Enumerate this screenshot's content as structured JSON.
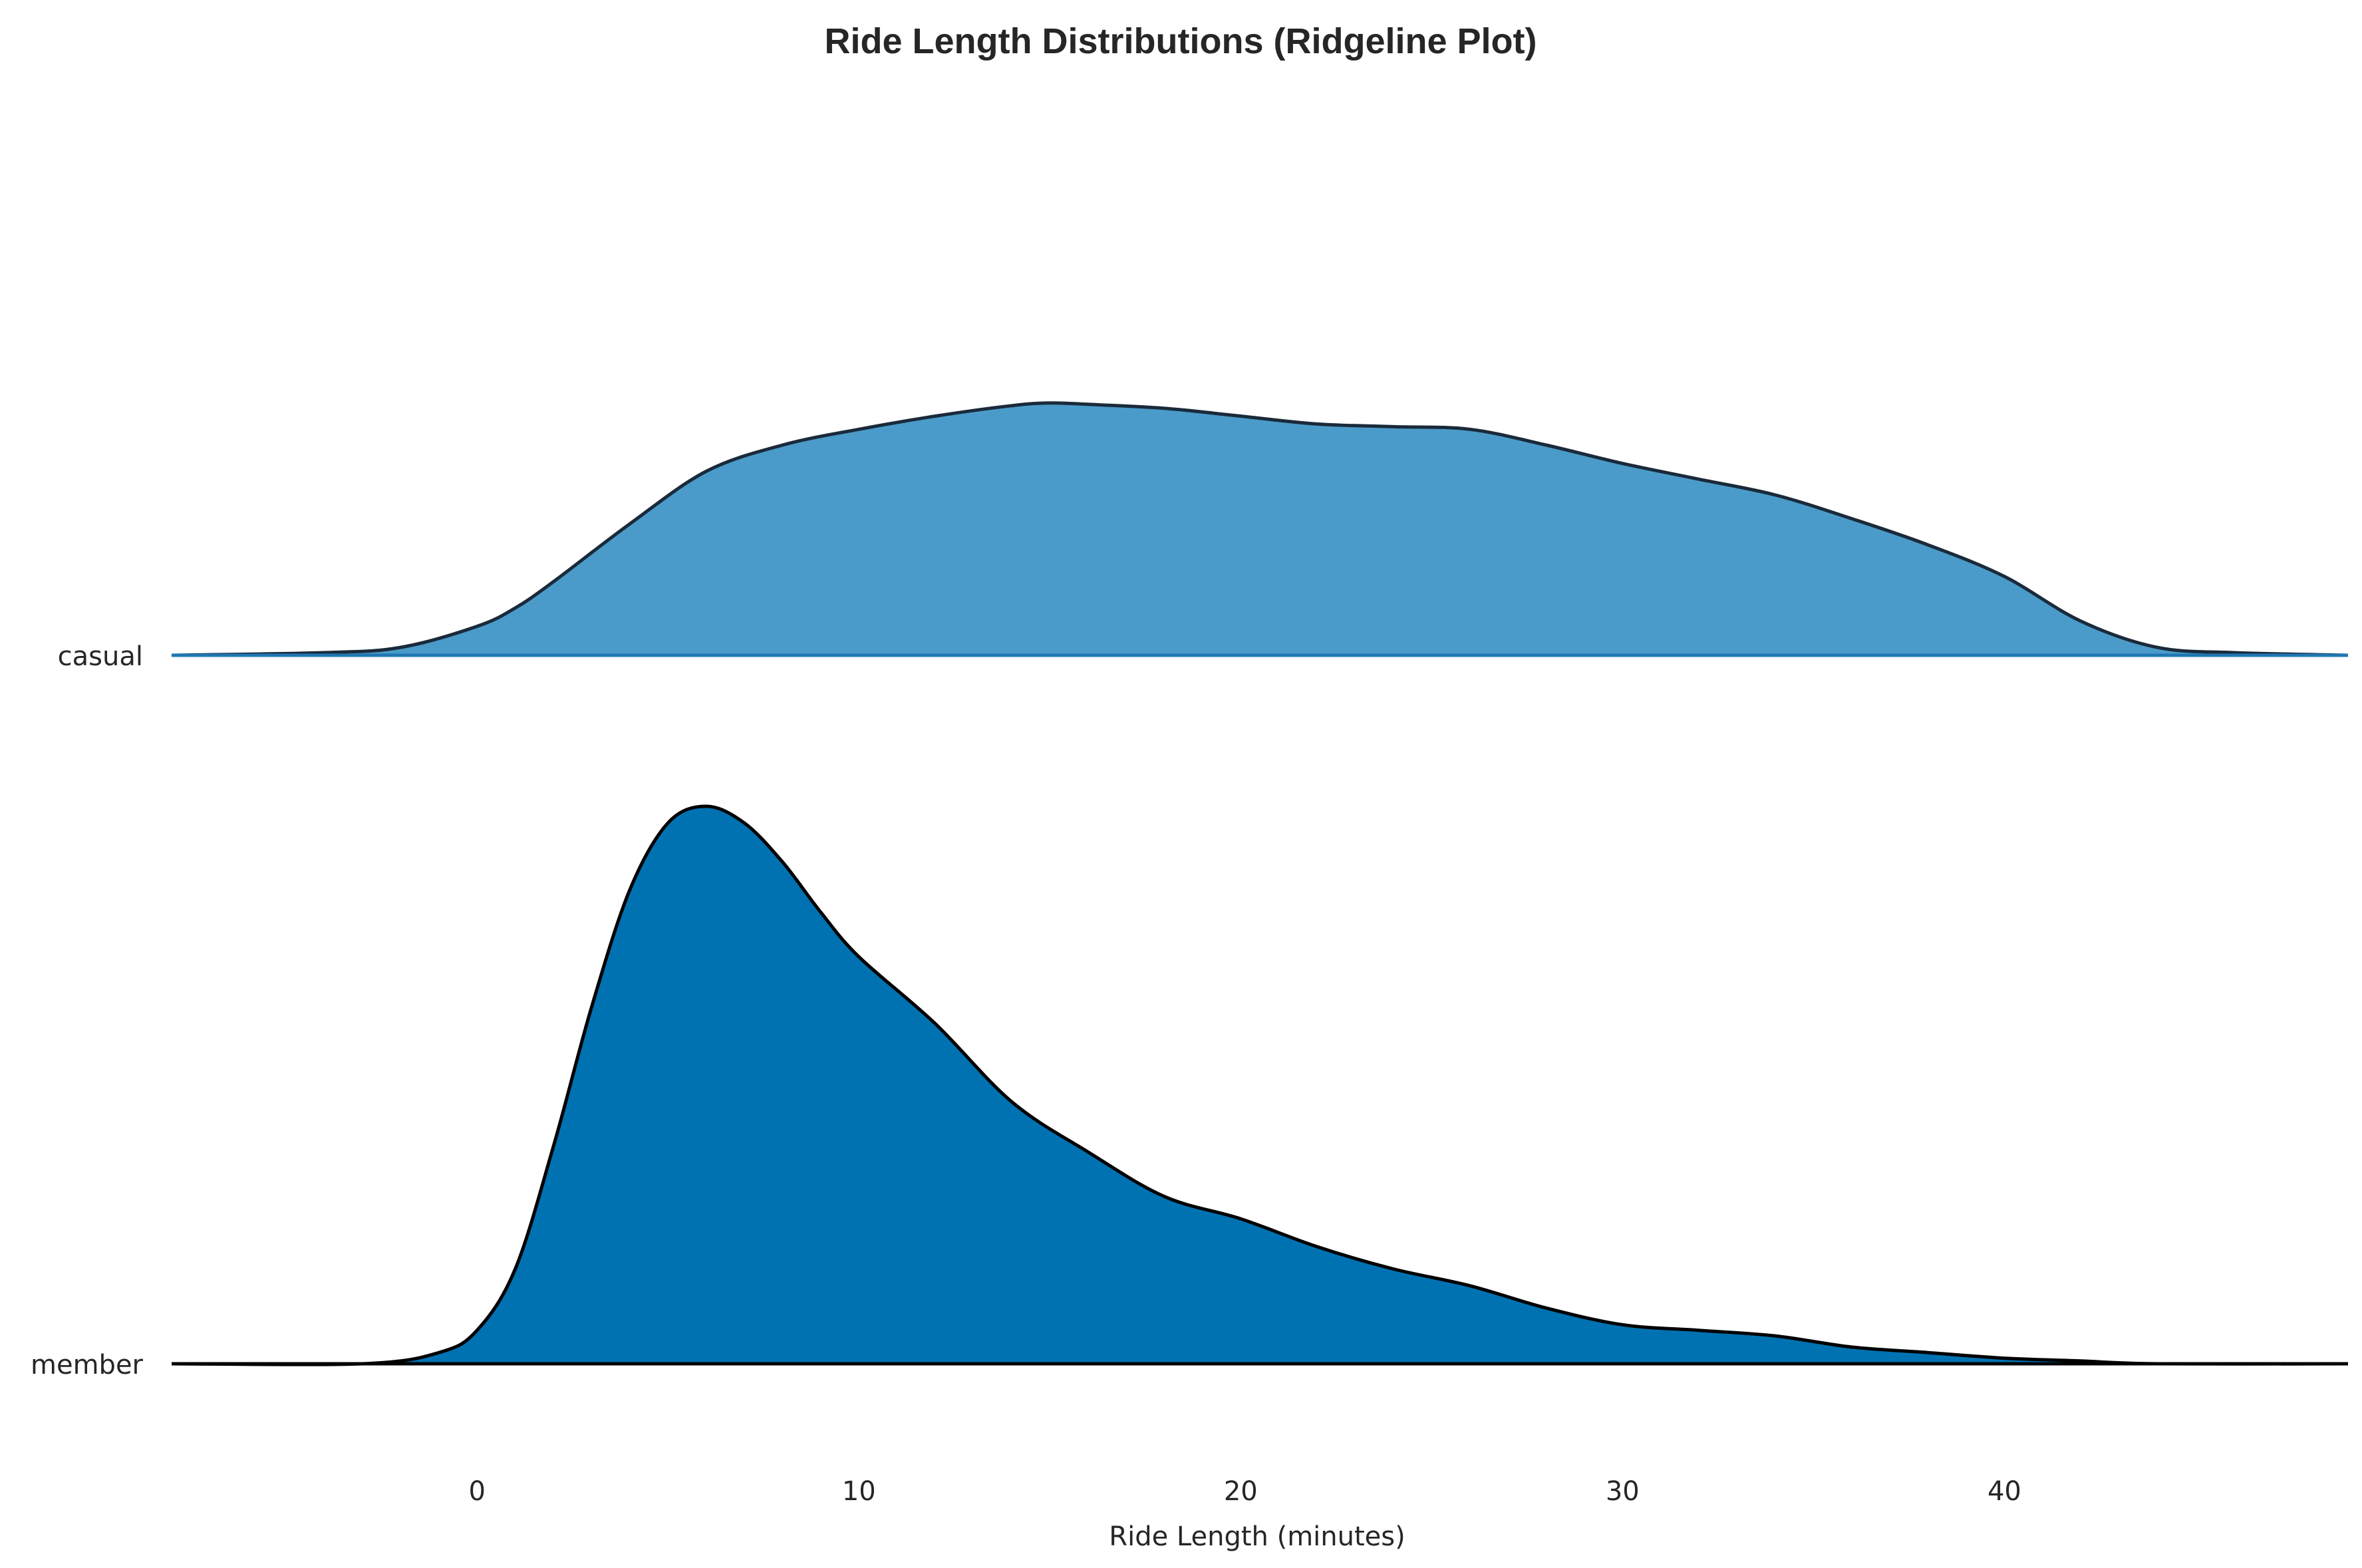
{
  "chart_data": {
    "type": "area",
    "title": "Ride Length Distributions (Ridgeline Plot)",
    "xlabel": "Ride Length (minutes)",
    "ylabel": "",
    "xlim": [
      -8,
      49
    ],
    "x_ticks": [
      0,
      10,
      20,
      30,
      40
    ],
    "grid": false,
    "legend": "none",
    "series": [
      {
        "name": "casual",
        "color": "#4a9bc9",
        "baseline_color": "#1f77b4",
        "x": [
          -8,
          -4,
          -2,
          0,
          1,
          2,
          4,
          6,
          8,
          10,
          12,
          14,
          15,
          16,
          18,
          20,
          22,
          24,
          26,
          28,
          30,
          32,
          34,
          36,
          38,
          40,
          42,
          44,
          46,
          49
        ],
        "y": [
          0.0,
          0.01,
          0.03,
          0.11,
          0.18,
          0.28,
          0.5,
          0.7,
          0.8,
          0.86,
          0.91,
          0.95,
          0.96,
          0.955,
          0.94,
          0.91,
          0.88,
          0.87,
          0.86,
          0.8,
          0.73,
          0.67,
          0.61,
          0.52,
          0.42,
          0.3,
          0.13,
          0.03,
          0.01,
          0.0
        ]
      },
      {
        "name": "member",
        "color": "#0072b2",
        "baseline_color": "#000000",
        "x": [
          -8,
          -3,
          -1,
          0,
          1,
          2,
          3,
          4,
          5,
          6,
          7,
          8,
          9,
          10,
          12,
          14,
          16,
          18,
          20,
          22,
          24,
          26,
          28,
          30,
          32,
          34,
          36,
          38,
          40,
          42,
          44,
          49
        ],
        "y": [
          0.0,
          0.0,
          0.02,
          0.06,
          0.17,
          0.39,
          0.64,
          0.85,
          0.97,
          1.0,
          0.97,
          0.9,
          0.81,
          0.73,
          0.61,
          0.47,
          0.38,
          0.3,
          0.26,
          0.21,
          0.17,
          0.14,
          0.1,
          0.07,
          0.06,
          0.05,
          0.03,
          0.02,
          0.01,
          0.005,
          0.0,
          0.0
        ]
      }
    ]
  }
}
